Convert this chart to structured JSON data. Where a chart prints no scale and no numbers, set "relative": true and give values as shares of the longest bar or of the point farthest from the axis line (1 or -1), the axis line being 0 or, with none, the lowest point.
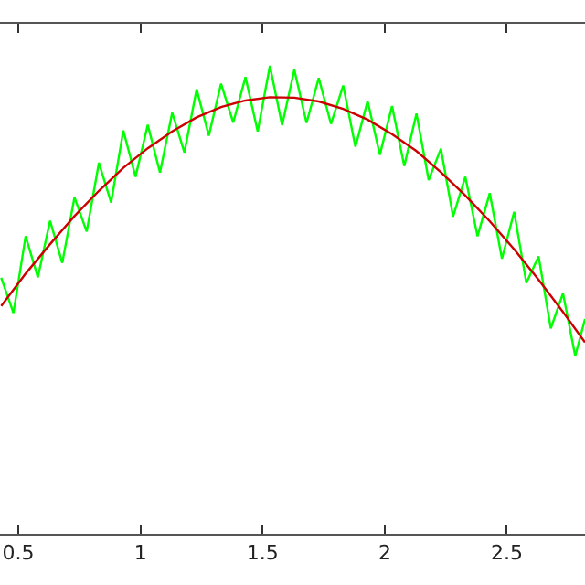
{
  "chart_data": {
    "type": "line",
    "relative": true,
    "xlim": [
      0.425,
      2.82
    ],
    "xticks": [
      0.5,
      1,
      1.5,
      2,
      2.5
    ],
    "tick_labels": "x",
    "grid": false,
    "marker": "none",
    "line_style": "solid",
    "series": [
      {
        "color": "#00ff00",
        "x": [
          0.43,
          0.48,
          0.53,
          0.58,
          0.63,
          0.68,
          0.73,
          0.78,
          0.83,
          0.88,
          0.93,
          0.98,
          1.03,
          1.08,
          1.13,
          1.18,
          1.23,
          1.28,
          1.33,
          1.38,
          1.43,
          1.48,
          1.53,
          1.58,
          1.63,
          1.68,
          1.73,
          1.78,
          1.83,
          1.88,
          1.93,
          1.98,
          2.03,
          2.08,
          2.13,
          2.18,
          2.23,
          2.28,
          2.33,
          2.38,
          2.43,
          2.48,
          2.53,
          2.58,
          2.63,
          2.68,
          2.73,
          2.78,
          2.82
        ],
        "values": [
          0.547,
          0.472,
          0.636,
          0.548,
          0.669,
          0.579,
          0.719,
          0.646,
          0.793,
          0.708,
          0.862,
          0.763,
          0.874,
          0.772,
          0.9,
          0.815,
          0.95,
          0.851,
          0.962,
          0.879,
          0.976,
          0.86,
          1.0,
          0.873,
          0.992,
          0.878,
          0.974,
          0.876,
          0.958,
          0.827,
          0.925,
          0.81,
          0.914,
          0.786,
          0.898,
          0.756,
          0.823,
          0.678,
          0.763,
          0.636,
          0.728,
          0.588,
          0.688,
          0.536,
          0.593,
          0.439,
          0.514,
          0.38,
          0.459
        ]
      },
      {
        "color": "#cc0000",
        "x": [
          0.43,
          0.53,
          0.63,
          0.73,
          0.83,
          0.93,
          1.03,
          1.13,
          1.23,
          1.33,
          1.43,
          1.53,
          1.63,
          1.73,
          1.83,
          1.93,
          2.03,
          2.13,
          2.23,
          2.33,
          2.43,
          2.53,
          2.63,
          2.73,
          2.82
        ],
        "values": [
          0.487,
          0.556,
          0.619,
          0.679,
          0.733,
          0.782,
          0.824,
          0.86,
          0.89,
          0.912,
          0.926,
          0.933,
          0.932,
          0.924,
          0.908,
          0.885,
          0.854,
          0.818,
          0.773,
          0.723,
          0.668,
          0.608,
          0.543,
          0.474,
          0.409
        ]
      }
    ]
  }
}
